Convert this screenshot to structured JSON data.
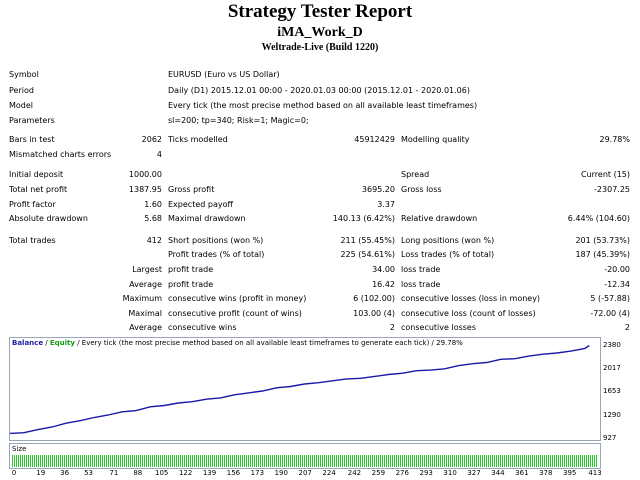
{
  "header": {
    "title": "Strategy Tester Report",
    "expert": "iMA_Work_D",
    "server": "Weltrade-Live (Build 1220)"
  },
  "info": [
    {
      "label": "Symbol",
      "value": "EURUSD (Euro vs US Dollar)"
    },
    {
      "label": "Period",
      "value": "Daily (D1) 2015.12.01 00:00 - 2020.01.03 00:00 (2015.12.01 - 2020.01.06)"
    },
    {
      "label": "Model",
      "value": "Every tick (the most precise method based on all available least timeframes)"
    },
    {
      "label": "Parameters",
      "value": "sl=200; tp=340; Risk=1; Magic=0;"
    }
  ],
  "stats": {
    "bars_label": "Bars in test",
    "bars": "2062",
    "ticks_label": "Ticks modelled",
    "ticks": "45912429",
    "quality_label": "Modelling quality",
    "quality": "29.78%",
    "mismatch_label": "Mismatched charts errors",
    "mismatch": "4",
    "deposit_label": "Initial deposit",
    "deposit": "1000.00",
    "spread_label": "Spread",
    "spread": "Current (15)",
    "netprofit_label": "Total net profit",
    "netprofit": "1387.95",
    "grossprofit_label": "Gross profit",
    "grossprofit": "3695.20",
    "grossloss_label": "Gross loss",
    "grossloss": "-2307.25",
    "pf_label": "Profit factor",
    "pf": "1.60",
    "payoff_label": "Expected payoff",
    "payoff": "3.37",
    "absdd_label": "Absolute drawdown",
    "absdd": "5.68",
    "maxdd_label": "Maximal drawdown",
    "maxdd": "140.13 (6.42%)",
    "reldd_label": "Relative drawdown",
    "reldd": "6.44% (104.60)",
    "trades_label": "Total trades",
    "trades": "412",
    "short_label": "Short positions (won %)",
    "short": "211 (55.45%)",
    "long_label": "Long positions (won %)",
    "long": "201 (53.73%)",
    "profittrades_label": "Profit trades (% of total)",
    "profittrades": "225 (54.61%)",
    "losstrades_label": "Loss trades (% of total)",
    "losstrades": "187 (45.39%)",
    "largest_label": "Largest",
    "lp_label": "profit trade",
    "lp": "34.00",
    "ll_label": "loss trade",
    "ll": "-20.00",
    "average_label": "Average",
    "ap_label": "profit trade",
    "ap": "16.42",
    "al_label": "loss trade",
    "al": "-12.34",
    "maximum_label": "Maximum",
    "mcw_label": "consecutive wins (profit in money)",
    "mcw": "6 (102.00)",
    "mcl_label": "consecutive losses (loss in money)",
    "mcl": "5 (-57.88)",
    "maximal_label": "Maximal",
    "mcp_label": "consecutive profit (count of wins)",
    "mcp": "103.00 (4)",
    "mcls_label": "consecutive loss (count of losses)",
    "mcls": "-72.00 (4)",
    "average2_label": "Average",
    "acw_label": "consecutive wins",
    "acw": "2",
    "acl_label": "consecutive losses",
    "acl": "2"
  },
  "legend": {
    "balance": "Balance",
    "sep": " / ",
    "equity": "Equity",
    "rest": " / Every tick (the most precise method based on all available least timeframes to generate each tick) / 29.78%"
  },
  "size_label": "Size",
  "colors": {
    "balance": "#1a1aa8",
    "volume": "#28c828",
    "border": "#9aa6b8"
  },
  "chart_data": {
    "type": "line",
    "title": "",
    "xlabel": "",
    "ylabel": "",
    "xlim": [
      0,
      420
    ],
    "ylim": [
      927,
      2380
    ],
    "y_ticks": [
      "2380",
      "2017",
      "1653",
      "1290",
      "927"
    ],
    "x_ticks": [
      "0",
      "19",
      "36",
      "53",
      "71",
      "88",
      "105",
      "122",
      "139",
      "156",
      "173",
      "190",
      "207",
      "224",
      "242",
      "259",
      "276",
      "293",
      "310",
      "327",
      "344",
      "361",
      "378",
      "395",
      "413"
    ],
    "series": [
      {
        "name": "Balance",
        "x": [
          0,
          10,
          20,
          30,
          40,
          50,
          60,
          70,
          80,
          90,
          100,
          110,
          120,
          130,
          140,
          150,
          160,
          170,
          180,
          190,
          200,
          210,
          220,
          230,
          240,
          250,
          260,
          270,
          280,
          290,
          300,
          310,
          320,
          330,
          340,
          350,
          360,
          370,
          380,
          390,
          400,
          410,
          413
        ],
        "y": [
          1000,
          1010,
          1060,
          1100,
          1160,
          1200,
          1250,
          1290,
          1340,
          1360,
          1420,
          1440,
          1480,
          1500,
          1540,
          1560,
          1610,
          1640,
          1670,
          1720,
          1740,
          1780,
          1800,
          1830,
          1860,
          1870,
          1900,
          1930,
          1950,
          1990,
          2000,
          2020,
          2070,
          2100,
          2120,
          2170,
          2180,
          2220,
          2250,
          2270,
          2300,
          2340,
          2388
        ]
      }
    ]
  }
}
